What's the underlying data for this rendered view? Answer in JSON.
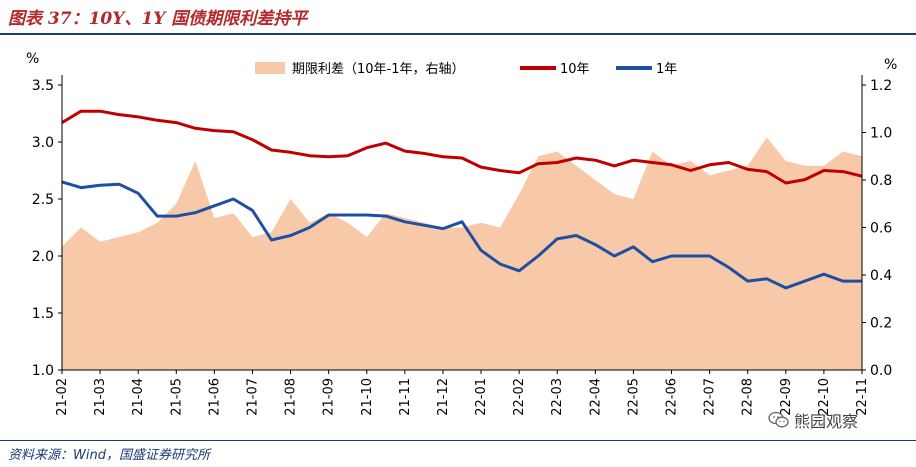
{
  "header": {
    "title": "图表 37：10Y、1Y 国债期限利差持平"
  },
  "footer": {
    "source": "资料来源：Wind，国盛证券研究所"
  },
  "watermark": {
    "text": "熊园观察",
    "icon": "wechat-icon"
  },
  "colors": {
    "y10": "#c00000",
    "y1": "#1f4fa3",
    "spread": "#f8c9a8",
    "title": "#b22a2a",
    "rule": "#1a3a73"
  },
  "chart_data": {
    "type": "line",
    "title": "",
    "left_axis": {
      "unit_label": "%",
      "min": 1.0,
      "max": 3.5,
      "ticks": [
        "1.0",
        "1.5",
        "2.0",
        "2.5",
        "3.0",
        "3.5"
      ]
    },
    "right_axis": {
      "unit_label": "%",
      "min": 0.0,
      "max": 1.2,
      "ticks": [
        "0.0",
        "0.2",
        "0.4",
        "0.6",
        "0.8",
        "1.0",
        "1.2"
      ]
    },
    "x_ticks": [
      "21-02",
      "21-03",
      "21-04",
      "21-05",
      "21-06",
      "21-07",
      "21-08",
      "21-09",
      "21-10",
      "21-11",
      "21-12",
      "22-01",
      "22-02",
      "22-03",
      "22-04",
      "22-05",
      "22-06",
      "22-07",
      "22-08",
      "22-09",
      "22-10",
      "22-11"
    ],
    "x": [
      "21-02",
      "21-02b",
      "21-03",
      "21-03b",
      "21-04",
      "21-04b",
      "21-05",
      "21-05b",
      "21-06",
      "21-06b",
      "21-07",
      "21-07b",
      "21-08",
      "21-08b",
      "21-09",
      "21-09b",
      "21-10",
      "21-10b",
      "21-11",
      "21-11b",
      "21-12",
      "21-12b",
      "22-01",
      "22-01b",
      "22-02",
      "22-02b",
      "22-03",
      "22-03b",
      "22-04",
      "22-04b",
      "22-05",
      "22-05b",
      "22-06",
      "22-06b",
      "22-07",
      "22-07b",
      "22-08",
      "22-08b",
      "22-09",
      "22-09b",
      "22-10",
      "22-10b",
      "22-11"
    ],
    "series": [
      {
        "name": "期限利差（10年-1年，右轴）",
        "type": "area",
        "axis": "right",
        "values": [
          0.52,
          0.6,
          0.54,
          0.56,
          0.58,
          0.62,
          0.7,
          0.88,
          0.64,
          0.66,
          0.56,
          0.58,
          0.72,
          0.62,
          0.66,
          0.62,
          0.56,
          0.66,
          0.64,
          0.62,
          0.6,
          0.6,
          0.62,
          0.6,
          0.74,
          0.9,
          0.92,
          0.86,
          0.8,
          0.74,
          0.72,
          0.92,
          0.86,
          0.88,
          0.82,
          0.84,
          0.86,
          0.98,
          0.88,
          0.86,
          0.86,
          0.92,
          0.9
        ]
      },
      {
        "name": "10年",
        "type": "line",
        "axis": "left",
        "values": [
          3.17,
          3.27,
          3.27,
          3.24,
          3.22,
          3.19,
          3.17,
          3.12,
          3.1,
          3.09,
          3.02,
          2.93,
          2.91,
          2.88,
          2.87,
          2.88,
          2.95,
          2.99,
          2.92,
          2.9,
          2.87,
          2.86,
          2.78,
          2.75,
          2.73,
          2.81,
          2.82,
          2.86,
          2.84,
          2.79,
          2.84,
          2.82,
          2.8,
          2.75,
          2.8,
          2.82,
          2.76,
          2.74,
          2.64,
          2.67,
          2.75,
          2.74,
          2.7
        ]
      },
      {
        "name": "1年",
        "type": "line",
        "axis": "left",
        "values": [
          2.65,
          2.6,
          2.62,
          2.63,
          2.55,
          2.35,
          2.35,
          2.38,
          2.44,
          2.5,
          2.4,
          2.14,
          2.18,
          2.25,
          2.36,
          2.36,
          2.36,
          2.35,
          2.3,
          2.27,
          2.24,
          2.3,
          2.05,
          1.93,
          1.87,
          2.0,
          2.15,
          2.18,
          2.1,
          2.0,
          2.08,
          1.95,
          2.0,
          2.0,
          2.0,
          1.9,
          1.78,
          1.8,
          1.72,
          1.78,
          1.84,
          1.78,
          1.78
        ]
      }
    ]
  }
}
